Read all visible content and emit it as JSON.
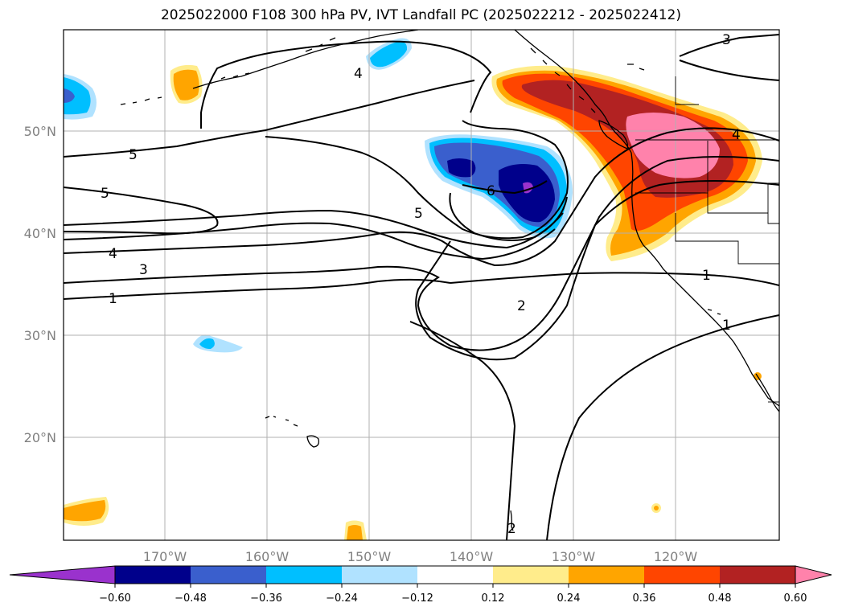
{
  "title": "2025022000 F108 300 hPa PV, IVT Landfall PC (2025022212 - 2025022412)",
  "lon_labels": [
    "170°W",
    "160°W",
    "150°W",
    "140°W",
    "130°W",
    "120°W"
  ],
  "lat_labels": [
    "50°N",
    "40°N",
    "30°N",
    "20°N"
  ],
  "contour_labels": [
    "5",
    "5",
    "4",
    "3",
    "1",
    "4",
    "6",
    "5",
    "2",
    "2",
    "3",
    "4",
    "1",
    "1"
  ],
  "colorbar": {
    "ticks": [
      "−0.60",
      "−0.48",
      "−0.36",
      "−0.24",
      "−0.12",
      "0.12",
      "0.24",
      "0.36",
      "0.48",
      "0.60"
    ],
    "colors": [
      "#9a32cd",
      "#00008b",
      "#3a5fcd",
      "#00bfff",
      "#b0e2ff",
      "#ffffff",
      "#ffec8b",
      "#ffa500",
      "#ff4500",
      "#b22222",
      "#ff82ab"
    ]
  }
}
